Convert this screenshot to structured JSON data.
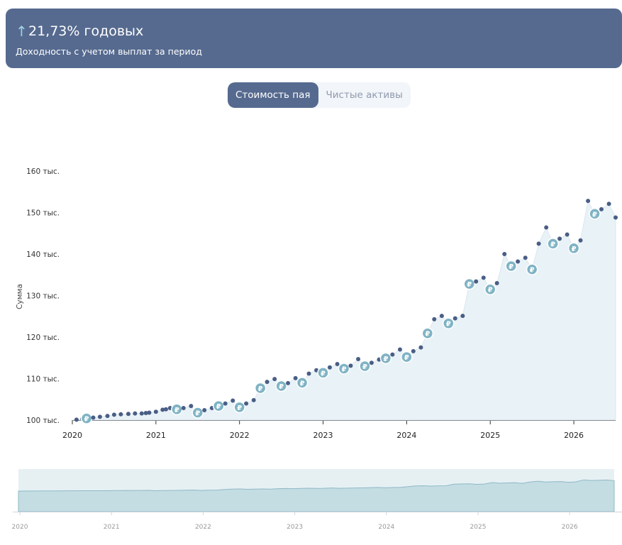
{
  "banner": {
    "yield": "21,73% годовых",
    "subtitle": "Доходность с учетом выплат за период",
    "arrow_icon": "arrow-up-icon"
  },
  "tabs": [
    {
      "label": "Стоимость пая",
      "active": true
    },
    {
      "label": "Чистые активы",
      "active": false
    }
  ],
  "colors": {
    "accent": "#566a8f",
    "dot": "#4a5e85",
    "payout": "#7fb3c4",
    "area": "#e9f2f7",
    "navigator": "#c4dde3"
  },
  "chart_data": {
    "type": "area",
    "ylabel": "Сумма",
    "y_ticks": [
      "100 тыс.",
      "110 тыс.",
      "120 тыс.",
      "130 тыс.",
      "140 тыс.",
      "150 тыс.",
      "160 тыс."
    ],
    "y_tick_values": [
      100000,
      110000,
      120000,
      130000,
      140000,
      150000,
      160000
    ],
    "x_ticks": [
      "2020",
      "2021",
      "2022",
      "2023",
      "2024",
      "2025",
      "2026"
    ],
    "x_tick_values": [
      2020,
      2021,
      2022,
      2023,
      2024,
      2025,
      2026
    ],
    "xlim": [
      2020,
      2026.5
    ],
    "ylim": [
      100000,
      160000
    ],
    "payout_icon": "ruble-icon",
    "points": [
      {
        "x": 2020.05,
        "y": 100100
      },
      {
        "x": 2020.12,
        "y": 100300
      },
      {
        "x": 2020.17,
        "y": 100400,
        "payout": true
      },
      {
        "x": 2020.25,
        "y": 100600
      },
      {
        "x": 2020.33,
        "y": 100800
      },
      {
        "x": 2020.42,
        "y": 101000
      },
      {
        "x": 2020.5,
        "y": 101300
      },
      {
        "x": 2020.58,
        "y": 101400
      },
      {
        "x": 2020.67,
        "y": 101500
      },
      {
        "x": 2020.75,
        "y": 101600
      },
      {
        "x": 2020.83,
        "y": 101600
      },
      {
        "x": 2020.88,
        "y": 101700
      },
      {
        "x": 2020.92,
        "y": 101800
      },
      {
        "x": 2021.0,
        "y": 102000
      },
      {
        "x": 2021.08,
        "y": 102500
      },
      {
        "x": 2021.12,
        "y": 102600
      },
      {
        "x": 2021.17,
        "y": 102900
      },
      {
        "x": 2021.25,
        "y": 102600,
        "payout": true
      },
      {
        "x": 2021.33,
        "y": 102900
      },
      {
        "x": 2021.42,
        "y": 103400
      },
      {
        "x": 2021.5,
        "y": 101800,
        "payout": true
      },
      {
        "x": 2021.58,
        "y": 102400
      },
      {
        "x": 2021.67,
        "y": 102900
      },
      {
        "x": 2021.75,
        "y": 103400,
        "payout": true
      },
      {
        "x": 2021.83,
        "y": 104000
      },
      {
        "x": 2021.92,
        "y": 104700
      },
      {
        "x": 2022.0,
        "y": 103100,
        "payout": true
      },
      {
        "x": 2022.08,
        "y": 104000
      },
      {
        "x": 2022.17,
        "y": 104800
      },
      {
        "x": 2022.25,
        "y": 107700,
        "payout": true
      },
      {
        "x": 2022.33,
        "y": 109200
      },
      {
        "x": 2022.42,
        "y": 109900
      },
      {
        "x": 2022.5,
        "y": 108200,
        "payout": true
      },
      {
        "x": 2022.58,
        "y": 108900
      },
      {
        "x": 2022.67,
        "y": 110100
      },
      {
        "x": 2022.75,
        "y": 109000,
        "payout": true
      },
      {
        "x": 2022.83,
        "y": 111200
      },
      {
        "x": 2022.92,
        "y": 112000
      },
      {
        "x": 2023.0,
        "y": 111400,
        "payout": true
      },
      {
        "x": 2023.08,
        "y": 112700
      },
      {
        "x": 2023.17,
        "y": 113500
      },
      {
        "x": 2023.25,
        "y": 112400,
        "payout": true
      },
      {
        "x": 2023.33,
        "y": 113100
      },
      {
        "x": 2023.42,
        "y": 114700
      },
      {
        "x": 2023.5,
        "y": 113000,
        "payout": true
      },
      {
        "x": 2023.58,
        "y": 113800
      },
      {
        "x": 2023.67,
        "y": 114600
      },
      {
        "x": 2023.75,
        "y": 114900,
        "payout": true
      },
      {
        "x": 2023.83,
        "y": 115800
      },
      {
        "x": 2023.92,
        "y": 117000
      },
      {
        "x": 2024.0,
        "y": 115200,
        "payout": true
      },
      {
        "x": 2024.08,
        "y": 116600
      },
      {
        "x": 2024.17,
        "y": 117500
      },
      {
        "x": 2024.25,
        "y": 120900,
        "payout": true
      },
      {
        "x": 2024.33,
        "y": 124300
      },
      {
        "x": 2024.42,
        "y": 125100
      },
      {
        "x": 2024.5,
        "y": 123300,
        "payout": true
      },
      {
        "x": 2024.58,
        "y": 124500
      },
      {
        "x": 2024.67,
        "y": 125100
      },
      {
        "x": 2024.75,
        "y": 132800,
        "payout": true
      },
      {
        "x": 2024.83,
        "y": 133400
      },
      {
        "x": 2024.92,
        "y": 134300
      },
      {
        "x": 2025.0,
        "y": 131500,
        "payout": true
      },
      {
        "x": 2025.08,
        "y": 133000
      },
      {
        "x": 2025.17,
        "y": 140000
      },
      {
        "x": 2025.25,
        "y": 137100,
        "payout": true
      },
      {
        "x": 2025.33,
        "y": 138200
      },
      {
        "x": 2025.42,
        "y": 139100
      },
      {
        "x": 2025.5,
        "y": 136300,
        "payout": true
      },
      {
        "x": 2025.58,
        "y": 142500
      },
      {
        "x": 2025.67,
        "y": 146400
      },
      {
        "x": 2025.75,
        "y": 142500,
        "payout": true
      },
      {
        "x": 2025.83,
        "y": 143700
      },
      {
        "x": 2025.92,
        "y": 144700
      },
      {
        "x": 2026.0,
        "y": 141400,
        "payout": true
      },
      {
        "x": 2026.08,
        "y": 143300
      },
      {
        "x": 2026.17,
        "y": 152800
      },
      {
        "x": 2026.25,
        "y": 149700,
        "payout": true
      },
      {
        "x": 2026.33,
        "y": 150800
      },
      {
        "x": 2026.42,
        "y": 152100
      },
      {
        "x": 2026.5,
        "y": 148800
      }
    ]
  }
}
